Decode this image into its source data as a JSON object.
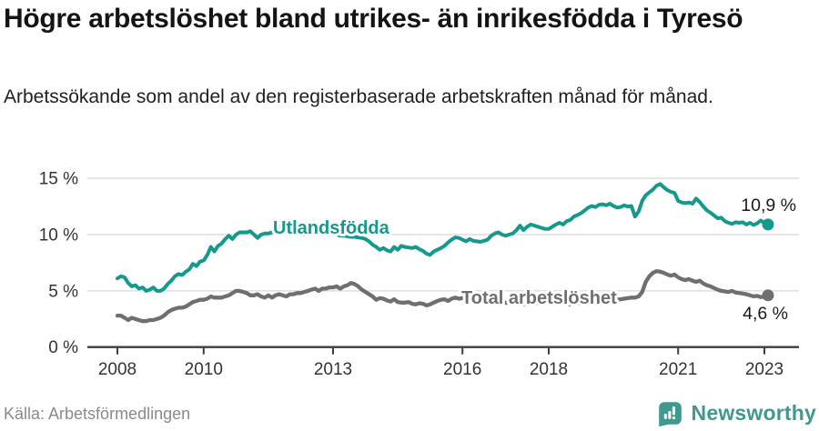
{
  "title": "Högre arbetslöshet bland utrikes- än inrikesfödda i Tyresö",
  "subtitle": "Arbetssökande som andel av den registerbaserade arbetskraften månad för månad.",
  "source": "Källa: Arbetsförmedlingen",
  "brand": {
    "name": "Newsworthy",
    "color": "#41988f"
  },
  "colors": {
    "accent_teal": "#14998c",
    "line_gray": "#6f6f72",
    "grid": "#d8d8d8",
    "axis": "#3d3d3d",
    "text_dark": "#141414",
    "source_gray": "#8a8a8a"
  },
  "chart_data": {
    "type": "line",
    "title": "Högre arbetslöshet bland utrikes- än inrikesfödda i Tyresö",
    "subtitle": "Arbetssökande som andel av den registerbaserade arbetskraften månad för månad.",
    "unit": "%",
    "interval": "monthly",
    "x_start": "2008-01",
    "x_end": "2023-02",
    "x_ticks": [
      2008,
      2010,
      2013,
      2016,
      2018,
      2021,
      2023
    ],
    "x_tick_labels": [
      "2008",
      "2010",
      "2013",
      "2016",
      "2018",
      "2021",
      "2023"
    ],
    "y_ticks": [
      0,
      5,
      10,
      15
    ],
    "y_tick_labels": [
      "0 %",
      "5 %",
      "10 %",
      "15 %"
    ],
    "ylim": [
      0,
      17
    ],
    "grid": "horizontal",
    "legend_position": "inline-labels",
    "series": [
      {
        "name": "Utlandsfödda",
        "color": "#14998c",
        "end_value": 10.9,
        "end_value_label": "10,9 %",
        "values": [
          6.1,
          6.3,
          6.2,
          5.7,
          5.4,
          5.5,
          5.2,
          5.3,
          5.0,
          5.1,
          5.3,
          5.0,
          5.0,
          5.2,
          5.6,
          5.9,
          6.3,
          6.5,
          6.4,
          6.7,
          6.9,
          7.4,
          7.2,
          7.6,
          7.7,
          8.2,
          8.9,
          8.5,
          9.0,
          9.2,
          9.6,
          9.9,
          9.6,
          10.0,
          10.2,
          10.2,
          10.2,
          10.3,
          10.0,
          9.7,
          10.0,
          10.1,
          10.1,
          10.2,
          10.4,
          10.7,
          10.8,
          10.4,
          10.0,
          10.2,
          10.3,
          10.1,
          10.0,
          10.2,
          10.3,
          10.2,
          10.1,
          10.0,
          10.1,
          10.2,
          10.0,
          10.0,
          9.9,
          9.9,
          9.85,
          9.8,
          9.8,
          9.75,
          9.7,
          9.6,
          9.4,
          9.1,
          8.9,
          8.65,
          8.8,
          8.6,
          8.5,
          8.9,
          8.65,
          9.0,
          8.9,
          8.85,
          8.8,
          8.9,
          8.7,
          8.55,
          8.3,
          8.2,
          8.5,
          8.65,
          8.8,
          9.0,
          9.3,
          9.55,
          9.75,
          9.7,
          9.55,
          9.4,
          9.6,
          9.45,
          9.4,
          9.35,
          9.45,
          9.55,
          9.9,
          10.1,
          10.2,
          10.0,
          9.9,
          10.0,
          10.1,
          10.4,
          10.8,
          10.4,
          10.7,
          10.9,
          10.8,
          10.7,
          10.6,
          10.5,
          10.5,
          10.7,
          10.9,
          11.05,
          10.9,
          11.2,
          11.3,
          11.6,
          11.75,
          11.9,
          12.15,
          12.4,
          12.55,
          12.45,
          12.65,
          12.7,
          12.6,
          12.75,
          12.55,
          12.4,
          12.45,
          12.6,
          12.5,
          12.55,
          11.6,
          12.05,
          13.0,
          13.5,
          13.75,
          14.0,
          14.35,
          14.5,
          14.2,
          13.95,
          13.8,
          13.7,
          13.0,
          12.85,
          12.8,
          12.85,
          12.75,
          13.2,
          12.9,
          12.5,
          12.15,
          11.95,
          11.7,
          11.45,
          11.5,
          11.2,
          11.05,
          10.95,
          11.1,
          11.05,
          11.1,
          10.9,
          11.05,
          10.85,
          11.0,
          11.25,
          11.0,
          10.9
        ]
      },
      {
        "name": "Total arbetslöshet",
        "color": "#6f6f72",
        "end_value": 4.6,
        "end_value_label": "4,6 %",
        "values": [
          2.8,
          2.8,
          2.6,
          2.4,
          2.6,
          2.5,
          2.4,
          2.3,
          2.3,
          2.4,
          2.4,
          2.5,
          2.6,
          2.8,
          3.1,
          3.3,
          3.4,
          3.5,
          3.5,
          3.6,
          3.8,
          4.0,
          4.1,
          4.2,
          4.2,
          4.3,
          4.5,
          4.4,
          4.4,
          4.4,
          4.5,
          4.6,
          4.8,
          5.0,
          5.0,
          4.9,
          4.8,
          4.6,
          4.6,
          4.7,
          4.5,
          4.4,
          4.6,
          4.4,
          4.6,
          4.7,
          4.6,
          4.5,
          4.7,
          4.7,
          4.8,
          4.8,
          4.9,
          5.0,
          5.1,
          5.2,
          5.0,
          5.2,
          5.2,
          5.3,
          5.3,
          5.4,
          5.2,
          5.4,
          5.5,
          5.7,
          5.6,
          5.4,
          5.1,
          4.9,
          4.7,
          4.5,
          4.2,
          4.35,
          4.3,
          4.15,
          4.05,
          4.25,
          4.0,
          3.95,
          3.95,
          4.0,
          3.85,
          3.8,
          3.9,
          3.85,
          3.7,
          3.8,
          3.95,
          4.1,
          4.2,
          4.25,
          4.1,
          4.3,
          4.4,
          4.3,
          4.35,
          4.3,
          4.3,
          4.25,
          4.2,
          4.2,
          4.1,
          4.1,
          4.05,
          4.0,
          4.0,
          4.0,
          3.95,
          3.9,
          3.9,
          3.85,
          3.8,
          3.8,
          3.85,
          3.9,
          3.9,
          3.9,
          3.95,
          4.0,
          4.0,
          3.95,
          3.9,
          3.9,
          3.85,
          3.8,
          3.8,
          3.85,
          3.9,
          3.9,
          3.95,
          4.0,
          4.0,
          4.0,
          4.05,
          4.1,
          4.1,
          4.15,
          4.2,
          4.2,
          4.25,
          4.3,
          4.35,
          4.4,
          4.4,
          4.5,
          4.9,
          5.8,
          6.3,
          6.6,
          6.75,
          6.7,
          6.6,
          6.45,
          6.35,
          6.45,
          6.2,
          6.05,
          5.95,
          6.05,
          5.9,
          5.8,
          5.9,
          5.65,
          5.5,
          5.4,
          5.25,
          5.1,
          5.0,
          4.95,
          4.9,
          5.0,
          4.85,
          4.8,
          4.75,
          4.7,
          4.6,
          4.5,
          4.55,
          4.45,
          4.5,
          4.6
        ]
      }
    ]
  }
}
